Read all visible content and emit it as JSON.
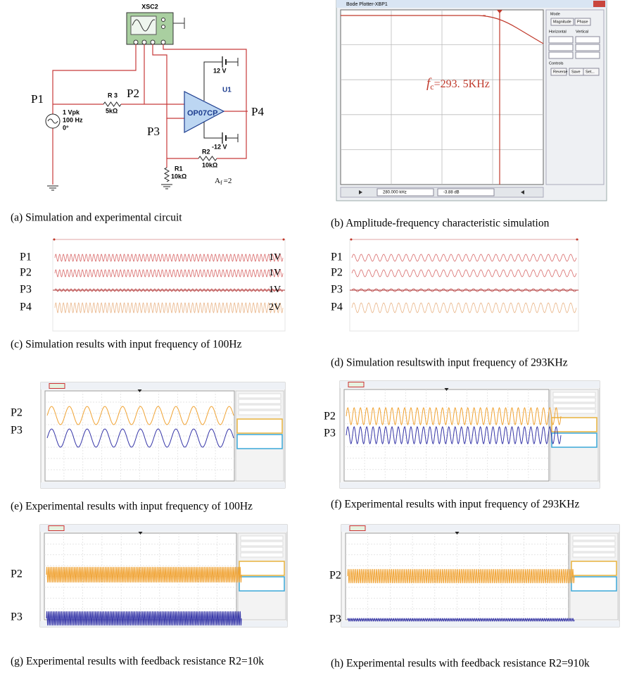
{
  "circuit": {
    "scope": "XSC2",
    "nodes": [
      "P1",
      "P2",
      "P3",
      "P4"
    ],
    "source": [
      "1 Vpk",
      "100 Hz",
      "0°"
    ],
    "r3": [
      "R 3",
      "5kΩ"
    ],
    "opamp": "OP07CP",
    "unit": "U1",
    "supply": [
      "12 V",
      "-12 V"
    ],
    "r2": [
      "R2",
      "10kΩ"
    ],
    "r1": [
      "R1",
      "10kΩ"
    ],
    "gain": {
      "symbol": "A",
      "sub": "f",
      "text": "=2"
    }
  },
  "bode": {
    "title": "Bode Plotter-XBP1",
    "cutoff": {
      "symbol": "f",
      "sub": "c",
      "text": "=293. 5KHz"
    },
    "controls": [
      "Mode",
      "Magnitude",
      "Phase",
      "Horizontal",
      "Vertical",
      "Controls",
      "Reverse",
      "Save",
      "Set..."
    ],
    "readouts": [
      "280.000 kHz",
      "-3.88 dB"
    ]
  },
  "panels": [
    {
      "caption": "(a) Simulation and experimental circuit"
    },
    {
      "caption": "(b) Amplitude-frequency characteristic simulation"
    },
    {
      "caption": "(c) Simulation results with input frequency of 100Hz",
      "labels": [
        "P1",
        "P2",
        "P3",
        "P4"
      ],
      "scales": [
        "1V",
        "1V",
        "1V",
        "2V"
      ]
    },
    {
      "caption": "(d) Simulation resultswith input frequency of 293KHz",
      "labels": [
        "P1",
        "P2",
        "P3",
        "P4"
      ]
    },
    {
      "caption": "(e) Experimental results with input frequency of 100Hz",
      "labels": [
        "P2",
        "P3"
      ]
    },
    {
      "caption": "(f) Experimental results with input frequency of 293KHz",
      "labels": [
        "P2",
        "P3"
      ]
    },
    {
      "caption": "(g) Experimental results with feedback resistance R2=10k",
      "labels": [
        "P2",
        "P3"
      ]
    },
    {
      "caption": "(h) Experimental results with feedback resistance R2=910k",
      "labels": [
        "P2",
        "P3"
      ]
    }
  ]
}
